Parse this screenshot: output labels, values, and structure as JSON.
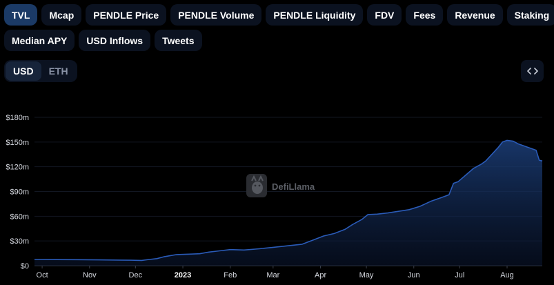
{
  "metric_tabs": [
    {
      "label": "TVL",
      "active": true
    },
    {
      "label": "Mcap",
      "active": false
    },
    {
      "label": "PENDLE Price",
      "active": false
    },
    {
      "label": "PENDLE Volume",
      "active": false
    },
    {
      "label": "PENDLE Liquidity",
      "active": false
    },
    {
      "label": "FDV",
      "active": false
    },
    {
      "label": "Fees",
      "active": false
    },
    {
      "label": "Revenue",
      "active": false
    },
    {
      "label": "Staking",
      "active": false
    },
    {
      "label": "Median APY",
      "active": false
    },
    {
      "label": "USD Inflows",
      "active": false
    },
    {
      "label": "Tweets",
      "active": false
    }
  ],
  "currency": {
    "options": [
      "USD",
      "ETH"
    ],
    "selected": "USD"
  },
  "embed_icon": "code-brackets-icon",
  "watermark": {
    "text": "DefiLlama",
    "icon": "llama-logo-icon"
  },
  "colors": {
    "accent": "#2f5fbf",
    "line": "#2a5bb8",
    "active_tab": "#1b3a66",
    "pill_bg": "#0b1220"
  },
  "chart_data": {
    "type": "area",
    "title": "",
    "xlabel": "",
    "ylabel": "",
    "x_start": "2022-09-26",
    "x_end": "2023-08-24",
    "ylim": [
      0,
      180
    ],
    "y_ticks": [
      {
        "value": 0,
        "label": "$0"
      },
      {
        "value": 30,
        "label": "$30m"
      },
      {
        "value": 60,
        "label": "$60m"
      },
      {
        "value": 90,
        "label": "$90m"
      },
      {
        "value": 120,
        "label": "$120m"
      },
      {
        "value": 150,
        "label": "$150m"
      },
      {
        "value": 180,
        "label": "$180m"
      }
    ],
    "x_ticks": [
      {
        "date": "2022-10-01",
        "label": "Oct",
        "bold": false
      },
      {
        "date": "2022-11-01",
        "label": "Nov",
        "bold": false
      },
      {
        "date": "2022-12-01",
        "label": "Dec",
        "bold": false
      },
      {
        "date": "2023-01-01",
        "label": "2023",
        "bold": true
      },
      {
        "date": "2023-02-01",
        "label": "Feb",
        "bold": false
      },
      {
        "date": "2023-03-01",
        "label": "Mar",
        "bold": false
      },
      {
        "date": "2023-04-01",
        "label": "Apr",
        "bold": false
      },
      {
        "date": "2023-05-01",
        "label": "May",
        "bold": false
      },
      {
        "date": "2023-06-01",
        "label": "Jun",
        "bold": false
      },
      {
        "date": "2023-07-01",
        "label": "Jul",
        "bold": false
      },
      {
        "date": "2023-08-01",
        "label": "Aug",
        "bold": false
      }
    ],
    "grid": true,
    "legend": "none",
    "series": [
      {
        "points": [
          [
            "2022-09-26",
            7.5
          ],
          [
            "2022-10-10",
            7.4
          ],
          [
            "2022-10-24",
            7.3
          ],
          [
            "2022-11-07",
            7.0
          ],
          [
            "2022-11-21",
            6.8
          ],
          [
            "2022-11-28",
            6.6
          ],
          [
            "2022-12-05",
            6.4
          ],
          [
            "2022-12-10",
            7.5
          ],
          [
            "2022-12-15",
            8.5
          ],
          [
            "2022-12-20",
            11.0
          ],
          [
            "2022-12-28",
            13.5
          ],
          [
            "2023-01-05",
            14.0
          ],
          [
            "2023-01-12",
            14.5
          ],
          [
            "2023-01-18",
            16.5
          ],
          [
            "2023-01-25",
            18.0
          ],
          [
            "2023-02-01",
            19.5
          ],
          [
            "2023-02-10",
            19.0
          ],
          [
            "2023-02-20",
            20.5
          ],
          [
            "2023-02-28",
            22.0
          ],
          [
            "2023-03-10",
            24.0
          ],
          [
            "2023-03-20",
            26.0
          ],
          [
            "2023-03-27",
            31.0
          ],
          [
            "2023-04-03",
            36.0
          ],
          [
            "2023-04-10",
            39.0
          ],
          [
            "2023-04-17",
            44.0
          ],
          [
            "2023-04-22",
            50.0
          ],
          [
            "2023-04-28",
            56.0
          ],
          [
            "2023-05-02",
            62.0
          ],
          [
            "2023-05-08",
            62.5
          ],
          [
            "2023-05-15",
            64.0
          ],
          [
            "2023-05-22",
            66.0
          ],
          [
            "2023-05-29",
            68.0
          ],
          [
            "2023-06-05",
            72.0
          ],
          [
            "2023-06-12",
            78.0
          ],
          [
            "2023-06-18",
            82.0
          ],
          [
            "2023-06-24",
            86.0
          ],
          [
            "2023-06-27",
            100.0
          ],
          [
            "2023-06-30",
            102.0
          ],
          [
            "2023-07-05",
            110.0
          ],
          [
            "2023-07-10",
            118.0
          ],
          [
            "2023-07-15",
            123.0
          ],
          [
            "2023-07-18",
            127.0
          ],
          [
            "2023-07-22",
            135.0
          ],
          [
            "2023-07-26",
            143.0
          ],
          [
            "2023-07-29",
            150.0
          ],
          [
            "2023-08-01",
            152.0
          ],
          [
            "2023-08-05",
            151.0
          ],
          [
            "2023-08-08",
            148.0
          ],
          [
            "2023-08-11",
            146.0
          ],
          [
            "2023-08-14",
            144.0
          ],
          [
            "2023-08-17",
            142.0
          ],
          [
            "2023-08-20",
            140.0
          ],
          [
            "2023-08-22",
            128.0
          ],
          [
            "2023-08-24",
            127.0
          ]
        ]
      }
    ]
  }
}
